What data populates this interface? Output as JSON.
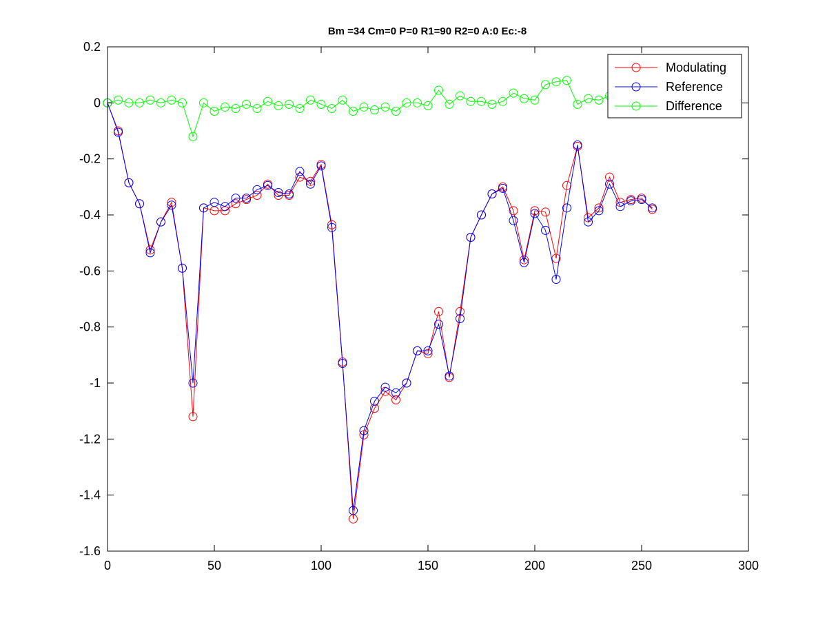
{
  "chart_data": {
    "type": "line",
    "title": "Bm =34  Cm=0  P=0  R1=90  R2=0  A:0  Ec:-8",
    "xlabel": "",
    "ylabel": "",
    "xlim": [
      0,
      300
    ],
    "ylim": [
      -1.6,
      0.2
    ],
    "xticks": [
      0,
      50,
      100,
      150,
      200,
      250,
      300
    ],
    "yticks": [
      0.2,
      0,
      -0.2,
      -0.4,
      -0.6,
      -0.8,
      -1,
      -1.2,
      -1.4,
      -1.6
    ],
    "ytick_labels": [
      "0.2",
      "0",
      "-0.2",
      "-0.4",
      "-0.6",
      "-0.8",
      "-1",
      "-1.2",
      "-1.4",
      "-1.6"
    ],
    "grid": false,
    "legend_position": "top-right",
    "x": [
      0,
      5,
      10,
      15,
      20,
      25,
      30,
      35,
      40,
      45,
      50,
      55,
      60,
      65,
      70,
      75,
      80,
      85,
      90,
      95,
      100,
      105,
      110,
      115,
      120,
      125,
      130,
      135,
      140,
      145,
      150,
      155,
      160,
      165,
      170,
      175,
      180,
      185,
      190,
      195,
      200,
      205,
      210,
      215,
      220,
      225,
      230,
      235,
      240,
      245,
      250,
      255
    ],
    "series": [
      {
        "name": "Modulating",
        "color": "#ff0000",
        "values": [
          0,
          -0.1,
          -0.285,
          -0.36,
          -0.525,
          -0.425,
          -0.355,
          -0.59,
          -1.12,
          -0.375,
          -0.385,
          -0.385,
          -0.36,
          -0.345,
          -0.33,
          -0.29,
          -0.33,
          -0.33,
          -0.265,
          -0.28,
          -0.22,
          -0.435,
          -0.925,
          -1.485,
          -1.185,
          -1.09,
          -1.03,
          -1.06,
          -1.0,
          -0.885,
          -0.895,
          -0.745,
          -0.98,
          -0.745,
          -0.48,
          -0.4,
          -0.325,
          -0.3,
          -0.385,
          -0.56,
          -0.385,
          -0.39,
          -0.555,
          -0.295,
          -0.155,
          -0.41,
          -0.375,
          -0.265,
          -0.355,
          -0.345,
          -0.34,
          -0.38
        ]
      },
      {
        "name": "Reference",
        "color": "#0000ff",
        "values": [
          0,
          -0.105,
          -0.285,
          -0.36,
          -0.535,
          -0.425,
          -0.365,
          -0.59,
          -1.0,
          -0.375,
          -0.355,
          -0.37,
          -0.34,
          -0.34,
          -0.31,
          -0.295,
          -0.32,
          -0.325,
          -0.245,
          -0.29,
          -0.225,
          -0.445,
          -0.93,
          -1.455,
          -1.17,
          -1.065,
          -1.015,
          -1.035,
          -1.0,
          -0.885,
          -0.885,
          -0.79,
          -0.975,
          -0.77,
          -0.48,
          -0.4,
          -0.325,
          -0.305,
          -0.42,
          -0.57,
          -0.395,
          -0.455,
          -0.63,
          -0.375,
          -0.15,
          -0.425,
          -0.385,
          -0.29,
          -0.37,
          -0.35,
          -0.345,
          -0.375
        ]
      },
      {
        "name": "Difference",
        "color": "#00ff00",
        "values": [
          0,
          0.01,
          0.0,
          0.0,
          0.01,
          0.0,
          0.01,
          0.0,
          -0.12,
          0.0,
          -0.03,
          -0.015,
          -0.02,
          -0.005,
          -0.02,
          0.005,
          -0.01,
          -0.005,
          -0.02,
          0.01,
          -0.005,
          -0.02,
          0.01,
          -0.03,
          -0.015,
          -0.025,
          -0.015,
          -0.03,
          0.0,
          0.0,
          -0.01,
          0.045,
          -0.005,
          0.025,
          0.005,
          0.005,
          -0.005,
          0.005,
          0.035,
          0.015,
          0.01,
          0.065,
          0.075,
          0.08,
          -0.005,
          0.015,
          0.01,
          0.025,
          0.015,
          0.005,
          0.005,
          -0.005
        ]
      }
    ]
  }
}
